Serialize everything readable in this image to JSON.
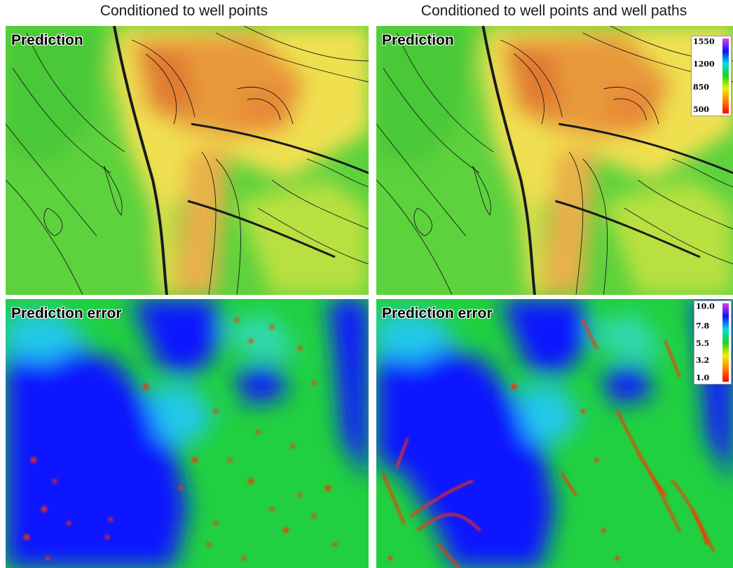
{
  "titles": {
    "left": "Conditioned to well points",
    "right": "Conditioned to well points and well paths"
  },
  "panels": {
    "prediction_label": "Prediction",
    "error_label": "Prediction error"
  },
  "colorbars": {
    "prediction": {
      "ticks": [
        "1550",
        "1200",
        "850",
        "500"
      ],
      "colors": [
        "#e040e0",
        "#1010ff",
        "#00e0e0",
        "#20d020",
        "#f0f000",
        "#ff8000",
        "#ff0000"
      ]
    },
    "error": {
      "ticks": [
        "10.0",
        "7.8",
        "5.5",
        "3.2",
        "1.0"
      ],
      "colors": [
        "#e040e0",
        "#1010ff",
        "#00e0e0",
        "#20d020",
        "#f0f000",
        "#ff8000",
        "#ff0000"
      ]
    }
  }
}
